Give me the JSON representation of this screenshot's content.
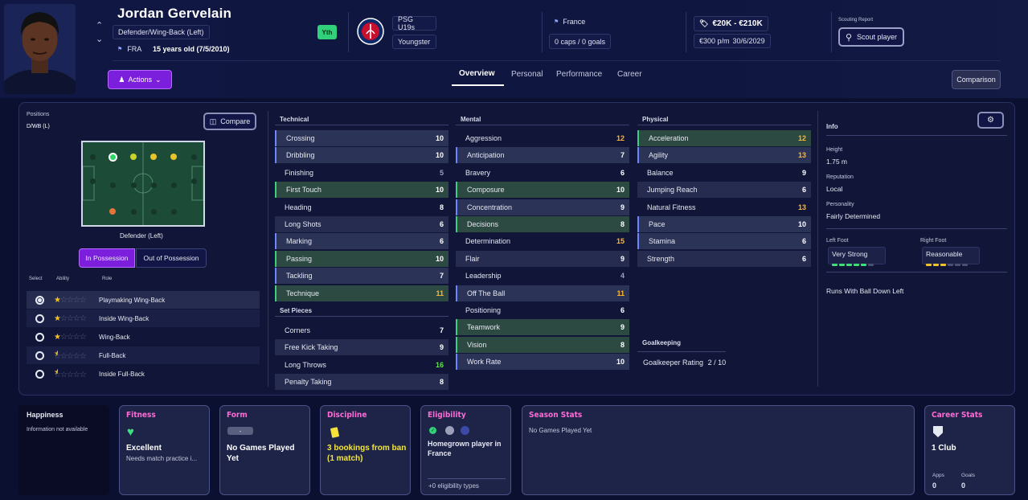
{
  "player": {
    "name": "Jordan Gervelain",
    "position": "Defender/Wing-Back (Left)",
    "nationality_code": "FRA",
    "age": "15 years old (7/5/2010)",
    "youth_badge": "Yth"
  },
  "club": {
    "name": "PSG U19s",
    "status": "Youngster"
  },
  "nation": {
    "name": "France",
    "caps": "0 caps / 0 goals"
  },
  "contract": {
    "value": "€20K - €210K",
    "wage": "€300 p/m",
    "expiry": "30/6/2029"
  },
  "scouting": {
    "label": "Scouting Report",
    "button": "Scout player"
  },
  "actions_label": "Actions",
  "tabs": [
    "Overview",
    "Personal",
    "Performance",
    "Career"
  ],
  "comparison_label": "Comparison",
  "positions": {
    "label": "Positions",
    "value": "D/WB (L)",
    "compare": "Compare",
    "pitch_caption": "Defender (Left)",
    "in_possession": "In Possession",
    "out_possession": "Out of Possession"
  },
  "roles": {
    "headers": [
      "Select",
      "Ability",
      "Role"
    ],
    "items": [
      {
        "name": "Playmaking Wing-Back",
        "stars": 1,
        "selected": true
      },
      {
        "name": "Inside Wing-Back",
        "stars": 1,
        "selected": false
      },
      {
        "name": "Wing-Back",
        "stars": 1,
        "selected": false
      },
      {
        "name": "Full-Back",
        "stars": 0.5,
        "selected": false
      },
      {
        "name": "Inside Full-Back",
        "stars": 0.5,
        "selected": false
      }
    ]
  },
  "technical": {
    "title": "Technical",
    "items": [
      {
        "name": "Crossing",
        "value": "10",
        "style": "hlb",
        "color": ""
      },
      {
        "name": "Dribbling",
        "value": "10",
        "style": "hlb",
        "color": ""
      },
      {
        "name": "Finishing",
        "value": "5",
        "style": "",
        "color": "m"
      },
      {
        "name": "First Touch",
        "value": "10",
        "style": "hl",
        "color": ""
      },
      {
        "name": "Heading",
        "value": "8",
        "style": "",
        "color": ""
      },
      {
        "name": "Long Shots",
        "value": "6",
        "style": "",
        "color": ""
      },
      {
        "name": "Marking",
        "value": "6",
        "style": "hlb",
        "color": ""
      },
      {
        "name": "Passing",
        "value": "10",
        "style": "hl",
        "color": ""
      },
      {
        "name": "Tackling",
        "value": "7",
        "style": "hlb",
        "color": ""
      },
      {
        "name": "Technique",
        "value": "11",
        "style": "hl",
        "color": "y"
      }
    ]
  },
  "set_pieces": {
    "title": "Set Pieces",
    "items": [
      {
        "name": "Corners",
        "value": "7",
        "style": "",
        "color": ""
      },
      {
        "name": "Free Kick Taking",
        "value": "9",
        "style": "sh",
        "color": ""
      },
      {
        "name": "Long Throws",
        "value": "16",
        "style": "",
        "color": "g"
      },
      {
        "name": "Penalty Taking",
        "value": "8",
        "style": "sh",
        "color": ""
      }
    ]
  },
  "mental": {
    "title": "Mental",
    "items": [
      {
        "name": "Aggression",
        "value": "12",
        "style": "",
        "color": "y"
      },
      {
        "name": "Anticipation",
        "value": "7",
        "style": "hlb",
        "color": ""
      },
      {
        "name": "Bravery",
        "value": "6",
        "style": "",
        "color": ""
      },
      {
        "name": "Composure",
        "value": "10",
        "style": "hl",
        "color": ""
      },
      {
        "name": "Concentration",
        "value": "9",
        "style": "hlb",
        "color": ""
      },
      {
        "name": "Decisions",
        "value": "8",
        "style": "hl",
        "color": ""
      },
      {
        "name": "Determination",
        "value": "15",
        "style": "",
        "color": "y"
      },
      {
        "name": "Flair",
        "value": "9",
        "style": "",
        "color": ""
      },
      {
        "name": "Leadership",
        "value": "4",
        "style": "",
        "color": "m"
      },
      {
        "name": "Off The Ball",
        "value": "11",
        "style": "hlb",
        "color": "y"
      },
      {
        "name": "Positioning",
        "value": "6",
        "style": "",
        "color": ""
      },
      {
        "name": "Teamwork",
        "value": "9",
        "style": "hl",
        "color": ""
      },
      {
        "name": "Vision",
        "value": "8",
        "style": "hl",
        "color": ""
      },
      {
        "name": "Work Rate",
        "value": "10",
        "style": "hlb",
        "color": ""
      }
    ]
  },
  "physical": {
    "title": "Physical",
    "items": [
      {
        "name": "Acceleration",
        "value": "12",
        "style": "hl",
        "color": "y"
      },
      {
        "name": "Agility",
        "value": "13",
        "style": "hlb",
        "color": "y"
      },
      {
        "name": "Balance",
        "value": "9",
        "style": "",
        "color": ""
      },
      {
        "name": "Jumping Reach",
        "value": "6",
        "style": "",
        "color": ""
      },
      {
        "name": "Natural Fitness",
        "value": "13",
        "style": "",
        "color": "y"
      },
      {
        "name": "Pace",
        "value": "10",
        "style": "hlb",
        "color": ""
      },
      {
        "name": "Stamina",
        "value": "6",
        "style": "hlb",
        "color": ""
      },
      {
        "name": "Strength",
        "value": "6",
        "style": "",
        "color": ""
      }
    ]
  },
  "goalkeeping": {
    "title": "Goalkeeping",
    "label": "Goalkeeper Rating",
    "value": "2 / 10"
  },
  "info": {
    "title": "Info",
    "height_label": "Height",
    "height": "1.75 m",
    "reputation_label": "Reputation",
    "reputation": "Local",
    "personality_label": "Personality",
    "personality": "Fairly Determined",
    "left_foot_label": "Left Foot",
    "left_foot": "Very Strong",
    "left_foot_level": 5,
    "right_foot_label": "Right Foot",
    "right_foot": "Reasonable",
    "right_foot_level": 3,
    "trait": "Runs With Ball Down Left"
  },
  "cards": {
    "happiness": {
      "title": "Happiness",
      "text": "Information not available"
    },
    "fitness": {
      "title": "Fitness",
      "value": "Excellent",
      "sub": "Needs match practice i..."
    },
    "form": {
      "title": "Form",
      "badge": "-",
      "value": "No Games Played Yet"
    },
    "discipline": {
      "title": "Discipline",
      "value": "3 bookings from ban (1 match)"
    },
    "eligibility": {
      "title": "Eligibility",
      "value": "Homegrown player in France",
      "footer": "+0 eligibility types"
    },
    "season": {
      "title": "Season Stats",
      "text": "No Games Played Yet"
    },
    "career": {
      "title": "Career Stats",
      "clubs": "1 Club",
      "apps_label": "Apps",
      "apps": "0",
      "goals_label": "Goals",
      "goals": "0"
    }
  },
  "colors": {
    "accent": "#7b1fdc",
    "highlight_green": "#2c4a41",
    "highlight_blue": "#2b3356",
    "card_title": "#ff6ad5",
    "yellow": "#ffb52e",
    "green": "#62e24b"
  }
}
